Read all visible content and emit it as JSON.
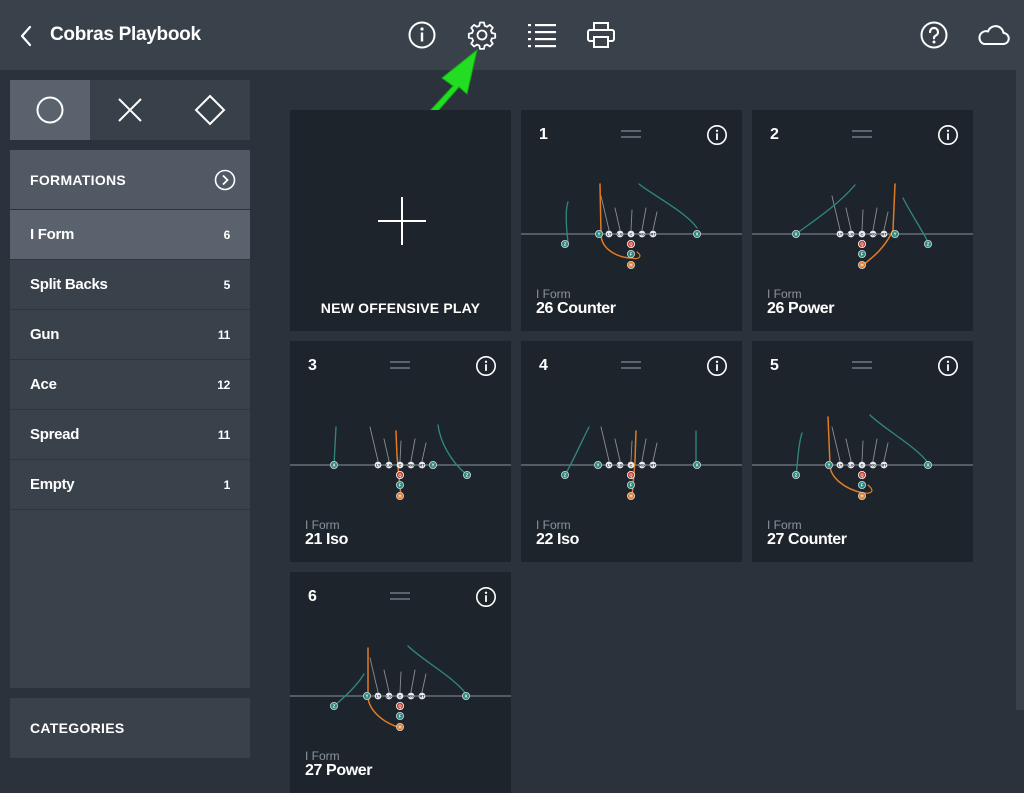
{
  "header": {
    "title": "Cobras Playbook",
    "icons": [
      "chevron-left-icon",
      "info-icon",
      "gear-icon",
      "list-icon",
      "printer-icon",
      "help-icon",
      "cloud-icon"
    ]
  },
  "sidebar": {
    "shape_tabs": [
      "circle",
      "x",
      "diamond"
    ],
    "formations_label": "FORMATIONS",
    "formations": [
      {
        "name": "I Form",
        "count": "6"
      },
      {
        "name": "Split Backs",
        "count": "5"
      },
      {
        "name": "Gun",
        "count": "11"
      },
      {
        "name": "Ace",
        "count": "12"
      },
      {
        "name": "Spread",
        "count": "11"
      },
      {
        "name": "Empty",
        "count": "1"
      }
    ],
    "categories_label": "CATEGORIES"
  },
  "new_play": {
    "label": "NEW OFFENSIVE PLAY"
  },
  "plays": [
    {
      "number": "1",
      "formation": "I Form",
      "name": "26 Counter"
    },
    {
      "number": "2",
      "formation": "I Form",
      "name": "26 Power"
    },
    {
      "number": "3",
      "formation": "I Form",
      "name": "21 Iso"
    },
    {
      "number": "4",
      "formation": "I Form",
      "name": "22 Iso"
    },
    {
      "number": "5",
      "formation": "I Form",
      "name": "27 Counter"
    },
    {
      "number": "6",
      "formation": "I Form",
      "name": "27 Power"
    }
  ],
  "colors": {
    "route": "#2f8a7e",
    "ball_carrier": "#e07b25",
    "center": "#c0392b",
    "annotation_arrow": "#22dd22"
  },
  "player_labels": {
    "lt": "LT",
    "lg": "LG",
    "c": "C",
    "rg": "RG",
    "rt": "RT",
    "y": "Y",
    "x": "X",
    "z": "Z",
    "q": "Q",
    "f": "F",
    "h": "H"
  }
}
